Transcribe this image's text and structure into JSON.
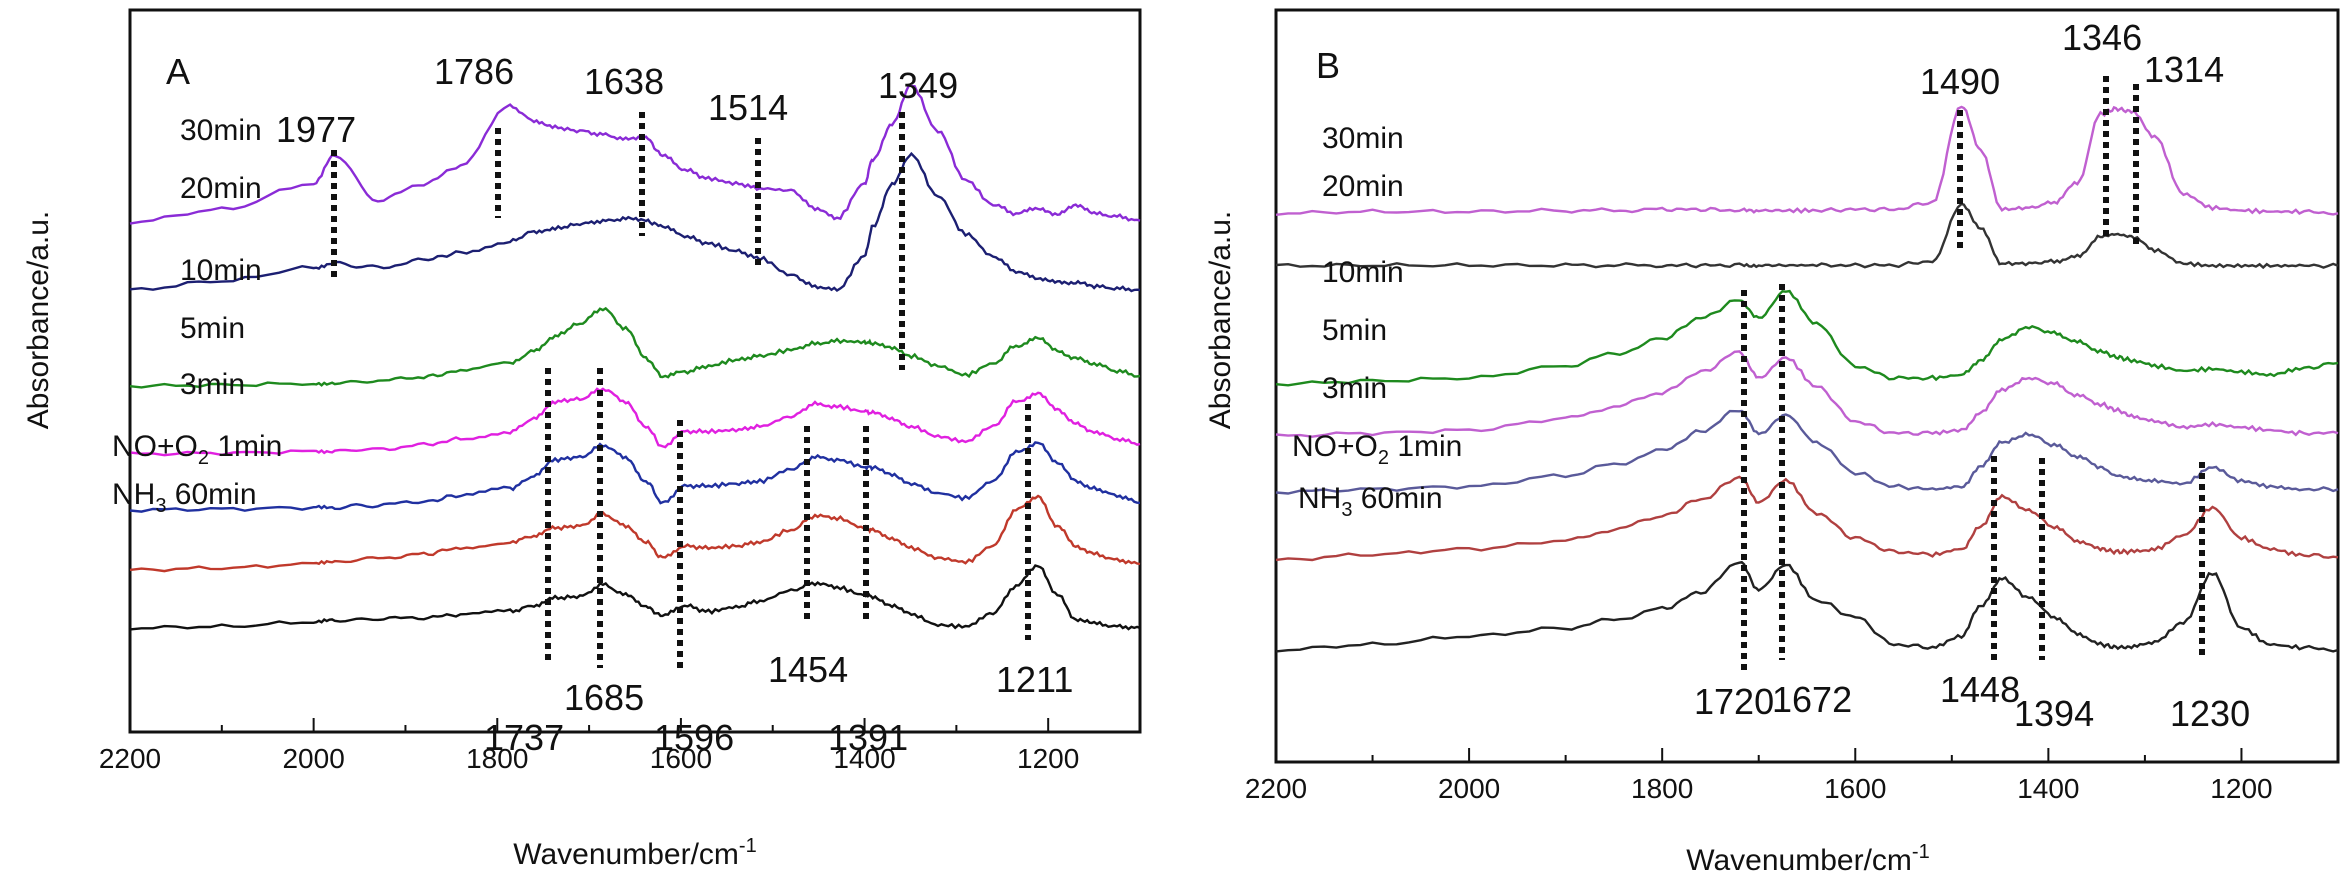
{
  "chart_data": [
    {
      "type": "line",
      "panel_label": "A",
      "xlabel": "Wavenumber/cm",
      "xlabel_sup": "-1",
      "ylabel": "Absorbance/a.u.",
      "xlim": [
        2200,
        1100
      ],
      "xticks": [
        2200,
        2000,
        1800,
        1600,
        1400,
        1200
      ],
      "x": [
        2200,
        2100,
        2000,
        1977,
        1930,
        1880,
        1840,
        1786,
        1760,
        1737,
        1710,
        1685,
        1660,
        1638,
        1620,
        1596,
        1570,
        1540,
        1514,
        1480,
        1454,
        1430,
        1400,
        1391,
        1370,
        1349,
        1320,
        1290,
        1260,
        1235,
        1211,
        1190,
        1170,
        1150,
        1125,
        1100
      ],
      "series": [
        {
          "name": "30min",
          "label": "30min",
          "color": "#8a2bd6",
          "values": [
            0.0,
            0.18,
            0.55,
            0.95,
            0.3,
            0.55,
            0.8,
            1.65,
            1.45,
            1.35,
            1.3,
            1.25,
            1.18,
            1.2,
            0.95,
            0.75,
            0.62,
            0.55,
            0.48,
            0.45,
            0.2,
            0.05,
            0.55,
            0.9,
            1.4,
            1.95,
            1.3,
            0.6,
            0.25,
            0.12,
            0.2,
            0.1,
            0.25,
            0.12,
            0.08,
            0.02
          ]
        },
        {
          "name": "20min",
          "label": "20min",
          "color": "#1c1f72",
          "values": [
            0.0,
            0.12,
            0.3,
            0.35,
            0.3,
            0.4,
            0.5,
            0.65,
            0.78,
            0.82,
            0.88,
            0.92,
            0.95,
            0.92,
            0.85,
            0.72,
            0.62,
            0.52,
            0.42,
            0.2,
            0.05,
            0.0,
            0.45,
            0.85,
            1.4,
            1.8,
            1.25,
            0.75,
            0.45,
            0.25,
            0.15,
            0.1,
            0.1,
            0.05,
            0.02,
            0.0
          ]
        },
        {
          "name": "10min",
          "label": "10min",
          "color": "#1e8a1e",
          "values": [
            0.0,
            0.02,
            0.05,
            0.06,
            0.1,
            0.18,
            0.3,
            0.45,
            0.7,
            1.0,
            1.25,
            1.55,
            1.15,
            0.55,
            0.2,
            0.28,
            0.4,
            0.52,
            0.6,
            0.72,
            0.85,
            0.9,
            0.88,
            0.85,
            0.75,
            0.6,
            0.4,
            0.22,
            0.45,
            0.8,
            0.95,
            0.7,
            0.55,
            0.45,
            0.3,
            0.2
          ]
        },
        {
          "name": "5min",
          "label": "5min",
          "color": "#e020e0",
          "values": [
            0.0,
            0.02,
            0.05,
            0.06,
            0.1,
            0.18,
            0.3,
            0.45,
            0.7,
            1.05,
            1.1,
            1.3,
            1.05,
            0.55,
            0.15,
            0.45,
            0.45,
            0.48,
            0.55,
            0.75,
            1.0,
            0.95,
            0.85,
            0.82,
            0.7,
            0.55,
            0.35,
            0.25,
            0.55,
            1.05,
            1.2,
            0.9,
            0.6,
            0.45,
            0.3,
            0.2
          ]
        },
        {
          "name": "3min",
          "label": "3min",
          "color": "#2030a0",
          "values": [
            0.0,
            0.02,
            0.05,
            0.06,
            0.1,
            0.18,
            0.3,
            0.45,
            0.7,
            1.05,
            1.1,
            1.35,
            1.1,
            0.6,
            0.15,
            0.5,
            0.5,
            0.55,
            0.6,
            0.85,
            1.1,
            1.05,
            0.9,
            0.88,
            0.75,
            0.55,
            0.35,
            0.25,
            0.6,
            1.2,
            1.4,
            1.0,
            0.6,
            0.45,
            0.3,
            0.15
          ]
        },
        {
          "name": "NO+O2 1min",
          "label": "NO+O",
          "label_sub": "2",
          "label_suffix": " 1min",
          "color": "#c0392b",
          "values": [
            0.0,
            0.05,
            0.15,
            0.2,
            0.3,
            0.4,
            0.55,
            0.7,
            0.85,
            1.05,
            1.1,
            1.4,
            1.1,
            0.7,
            0.3,
            0.6,
            0.55,
            0.6,
            0.7,
            1.0,
            1.35,
            1.3,
            1.05,
            1.0,
            0.8,
            0.55,
            0.3,
            0.2,
            0.6,
            1.5,
            1.85,
            1.1,
            0.6,
            0.4,
            0.25,
            0.15
          ]
        },
        {
          "name": "NH3 60min",
          "label": "NH",
          "label_sub": "3",
          "label_suffix": " 60min",
          "color": "#111111",
          "values": [
            0.0,
            0.05,
            0.2,
            0.25,
            0.3,
            0.35,
            0.45,
            0.55,
            0.75,
            1.0,
            1.05,
            1.45,
            1.1,
            0.7,
            0.4,
            0.75,
            0.55,
            0.7,
            0.9,
            1.25,
            1.5,
            1.35,
            1.1,
            1.05,
            0.75,
            0.45,
            0.1,
            0.05,
            0.5,
            1.4,
            2.1,
            1.1,
            0.3,
            0.15,
            0.05,
            0.0
          ]
        }
      ],
      "peak_annotations": [
        "1977",
        "1786",
        "1638",
        "1514",
        "1349",
        "1737",
        "1685",
        "1596",
        "1454",
        "1391",
        "1211"
      ]
    },
    {
      "type": "line",
      "panel_label": "B",
      "xlabel": "Wavenumber/cm",
      "xlabel_sup": "-1",
      "ylabel": "Absorbance/a.u.",
      "xlim": [
        2200,
        1100
      ],
      "xticks": [
        2200,
        2000,
        1800,
        1600,
        1400,
        1200
      ],
      "x": [
        2200,
        2100,
        2000,
        1900,
        1850,
        1800,
        1760,
        1720,
        1700,
        1672,
        1640,
        1600,
        1560,
        1520,
        1490,
        1470,
        1448,
        1420,
        1394,
        1370,
        1346,
        1330,
        1314,
        1290,
        1260,
        1230,
        1200,
        1170,
        1140,
        1100
      ],
      "series": [
        {
          "name": "30min",
          "label": "30min",
          "color": "#c060d0",
          "values": [
            0.05,
            0.08,
            0.08,
            0.1,
            0.1,
            0.12,
            0.12,
            0.1,
            0.1,
            0.1,
            0.1,
            0.12,
            0.12,
            0.25,
            2.0,
            1.2,
            0.12,
            0.15,
            0.25,
            0.6,
            1.85,
            1.95,
            1.9,
            1.45,
            0.4,
            0.15,
            0.1,
            0.08,
            0.08,
            0.05
          ]
        },
        {
          "name": "20min",
          "label": "20min",
          "color": "#333333",
          "values": [
            0.05,
            0.06,
            0.06,
            0.06,
            0.06,
            0.06,
            0.06,
            0.06,
            0.06,
            0.06,
            0.06,
            0.06,
            0.06,
            0.15,
            1.4,
            0.9,
            0.1,
            0.1,
            0.15,
            0.25,
            0.7,
            0.75,
            0.7,
            0.4,
            0.1,
            0.05,
            0.05,
            0.05,
            0.05,
            0.05
          ]
        },
        {
          "name": "10min",
          "label": "10min",
          "color": "#1e8a1e",
          "values": [
            0.0,
            0.05,
            0.1,
            0.3,
            0.5,
            0.75,
            1.1,
            1.4,
            1.1,
            1.55,
            1.0,
            0.3,
            0.1,
            0.1,
            0.15,
            0.4,
            0.75,
            0.95,
            0.85,
            0.7,
            0.55,
            0.45,
            0.4,
            0.3,
            0.22,
            0.25,
            0.2,
            0.15,
            0.25,
            0.35
          ]
        },
        {
          "name": "5min",
          "label": "5min",
          "color": "#c060d0",
          "values": [
            0.0,
            0.05,
            0.1,
            0.3,
            0.5,
            0.75,
            1.1,
            1.45,
            1.0,
            1.35,
            0.85,
            0.25,
            0.05,
            0.05,
            0.1,
            0.4,
            0.8,
            1.0,
            0.9,
            0.7,
            0.55,
            0.45,
            0.35,
            0.25,
            0.15,
            0.2,
            0.15,
            0.1,
            0.05,
            0.05
          ]
        },
        {
          "name": "3min",
          "label": "3min",
          "color": "#5a5a9a",
          "values": [
            0.0,
            0.05,
            0.1,
            0.3,
            0.5,
            0.75,
            1.1,
            1.5,
            1.05,
            1.4,
            0.9,
            0.35,
            0.1,
            0.05,
            0.1,
            0.45,
            0.9,
            1.05,
            0.85,
            0.65,
            0.45,
            0.3,
            0.25,
            0.2,
            0.15,
            0.45,
            0.2,
            0.1,
            0.05,
            0.05
          ]
        },
        {
          "name": "NO+O2 1min",
          "label": "NO+O",
          "label_sub": "2",
          "label_suffix": " 1min",
          "color": "#b04040",
          "values": [
            0.0,
            0.1,
            0.2,
            0.35,
            0.55,
            0.8,
            1.1,
            1.5,
            1.05,
            1.45,
            0.85,
            0.4,
            0.15,
            0.1,
            0.2,
            0.6,
            1.15,
            0.9,
            0.6,
            0.35,
            0.2,
            0.15,
            0.15,
            0.2,
            0.45,
            0.95,
            0.4,
            0.2,
            0.1,
            0.05
          ]
        },
        {
          "name": "NH3 60min",
          "label": "NH",
          "label_sub": "3",
          "label_suffix": " 60min",
          "color": "#222222",
          "values": [
            0.0,
            0.1,
            0.25,
            0.4,
            0.55,
            0.75,
            1.05,
            1.6,
            1.1,
            1.55,
            0.9,
            0.6,
            0.1,
            0.05,
            0.25,
            0.8,
            1.3,
            0.95,
            0.6,
            0.3,
            0.1,
            0.05,
            0.05,
            0.15,
            0.5,
            1.4,
            0.4,
            0.1,
            0.05,
            0.0
          ]
        }
      ],
      "peak_annotations": [
        "1490",
        "1346",
        "1314",
        "1720",
        "1672",
        "1448",
        "1394",
        "1230"
      ]
    }
  ]
}
